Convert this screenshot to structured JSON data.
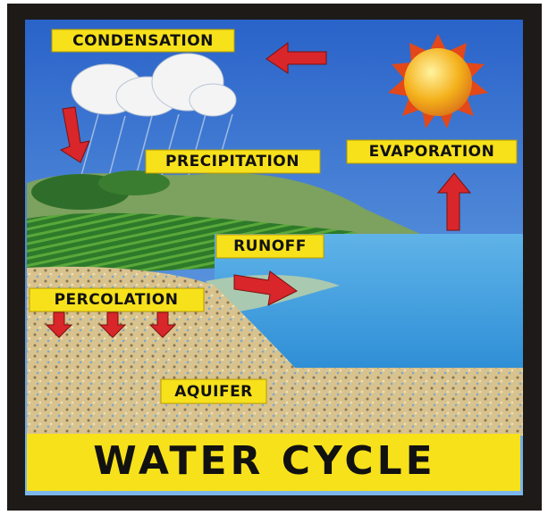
{
  "title": "WATER CYCLE",
  "labels": {
    "condensation": "CONDENSATION",
    "precipitation": "PRECIPITATION",
    "evaporation": "EVAPORATION",
    "runoff": "RUNOFF",
    "percolation": "PERCOLATION",
    "aquifer": "AQUIFER"
  }
}
